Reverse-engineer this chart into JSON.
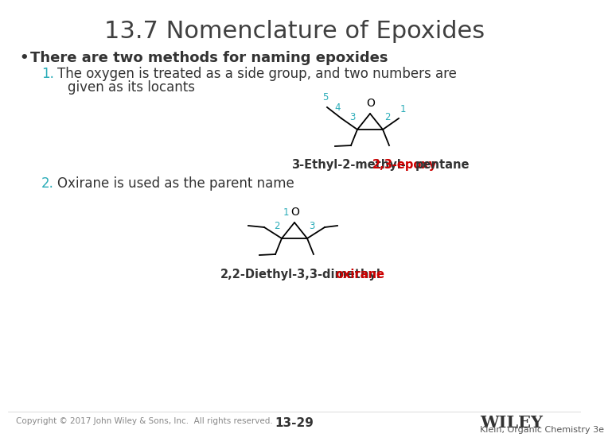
{
  "title": "13.7 Nomenclature of Epoxides",
  "title_fontsize": 22,
  "title_color": "#404040",
  "bg_color": "#ffffff",
  "bullet_color": "#333333",
  "bullet_text": "There are two methods for naming epoxides",
  "bullet_fontsize": 13,
  "teal_color": "#2aacb8",
  "red_color": "#cc0000",
  "dark_color": "#333333",
  "item1_fontsize": 12,
  "item2_fontsize": 12,
  "item2_text": "Oxirane is used as the parent name",
  "name_fontsize": 10.5,
  "footer_fontsize": 7.5,
  "footer_left": "Copyright © 2017 John Wiley & Sons, Inc.  All rights reserved.",
  "footer_center": "13-29",
  "footer_right": "Klein, Organic Chemistry 3e",
  "wiley_text": "WILEY"
}
